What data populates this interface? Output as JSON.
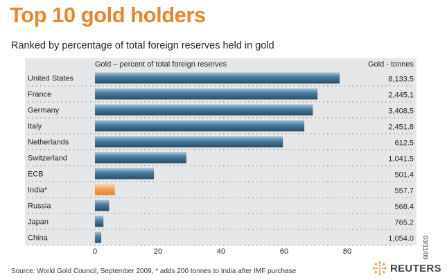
{
  "title": "Top 10 gold holders",
  "subtitle": "Ranked by percentage of total foreign reserves held in gold",
  "source": "Source: World Gold Council, September 2009, * adds 200 tonnes to India after IMF purchase",
  "datestamp": "03/11/09",
  "logo_text": "REUTERS",
  "colors": {
    "title": "#e8862e",
    "bar": "#3d6f91",
    "highlight_bar": "#f0a35b",
    "panel": "#e6e7e8"
  },
  "chart_data": {
    "type": "bar",
    "orientation": "horizontal",
    "bar_header": "Gold – percent of total foreign reserves",
    "value_header": "Gold - tonnes",
    "categories": [
      "United States",
      "France",
      "Germany",
      "Italy",
      "Netherlands",
      "Switzerland",
      "ECB",
      "India*",
      "Russia",
      "Japan",
      "China"
    ],
    "series": [
      {
        "values": [
          77.6,
          70.6,
          69.1,
          66.4,
          59.6,
          29.0,
          18.7,
          6.3,
          4.5,
          2.7,
          2.0
        ]
      }
    ],
    "tonnes": [
      "8,133.5",
      "2,445.1",
      "3,408.5",
      "2,451.8",
      "612.5",
      "1,041.5",
      "501.4",
      "557.7",
      "568.4",
      "765.2",
      "1,054.0"
    ],
    "highlight": [
      "India*"
    ],
    "xlim": [
      0,
      90
    ],
    "xticks": [
      0,
      20,
      40,
      60,
      80
    ],
    "grid": false,
    "legend": "none"
  }
}
